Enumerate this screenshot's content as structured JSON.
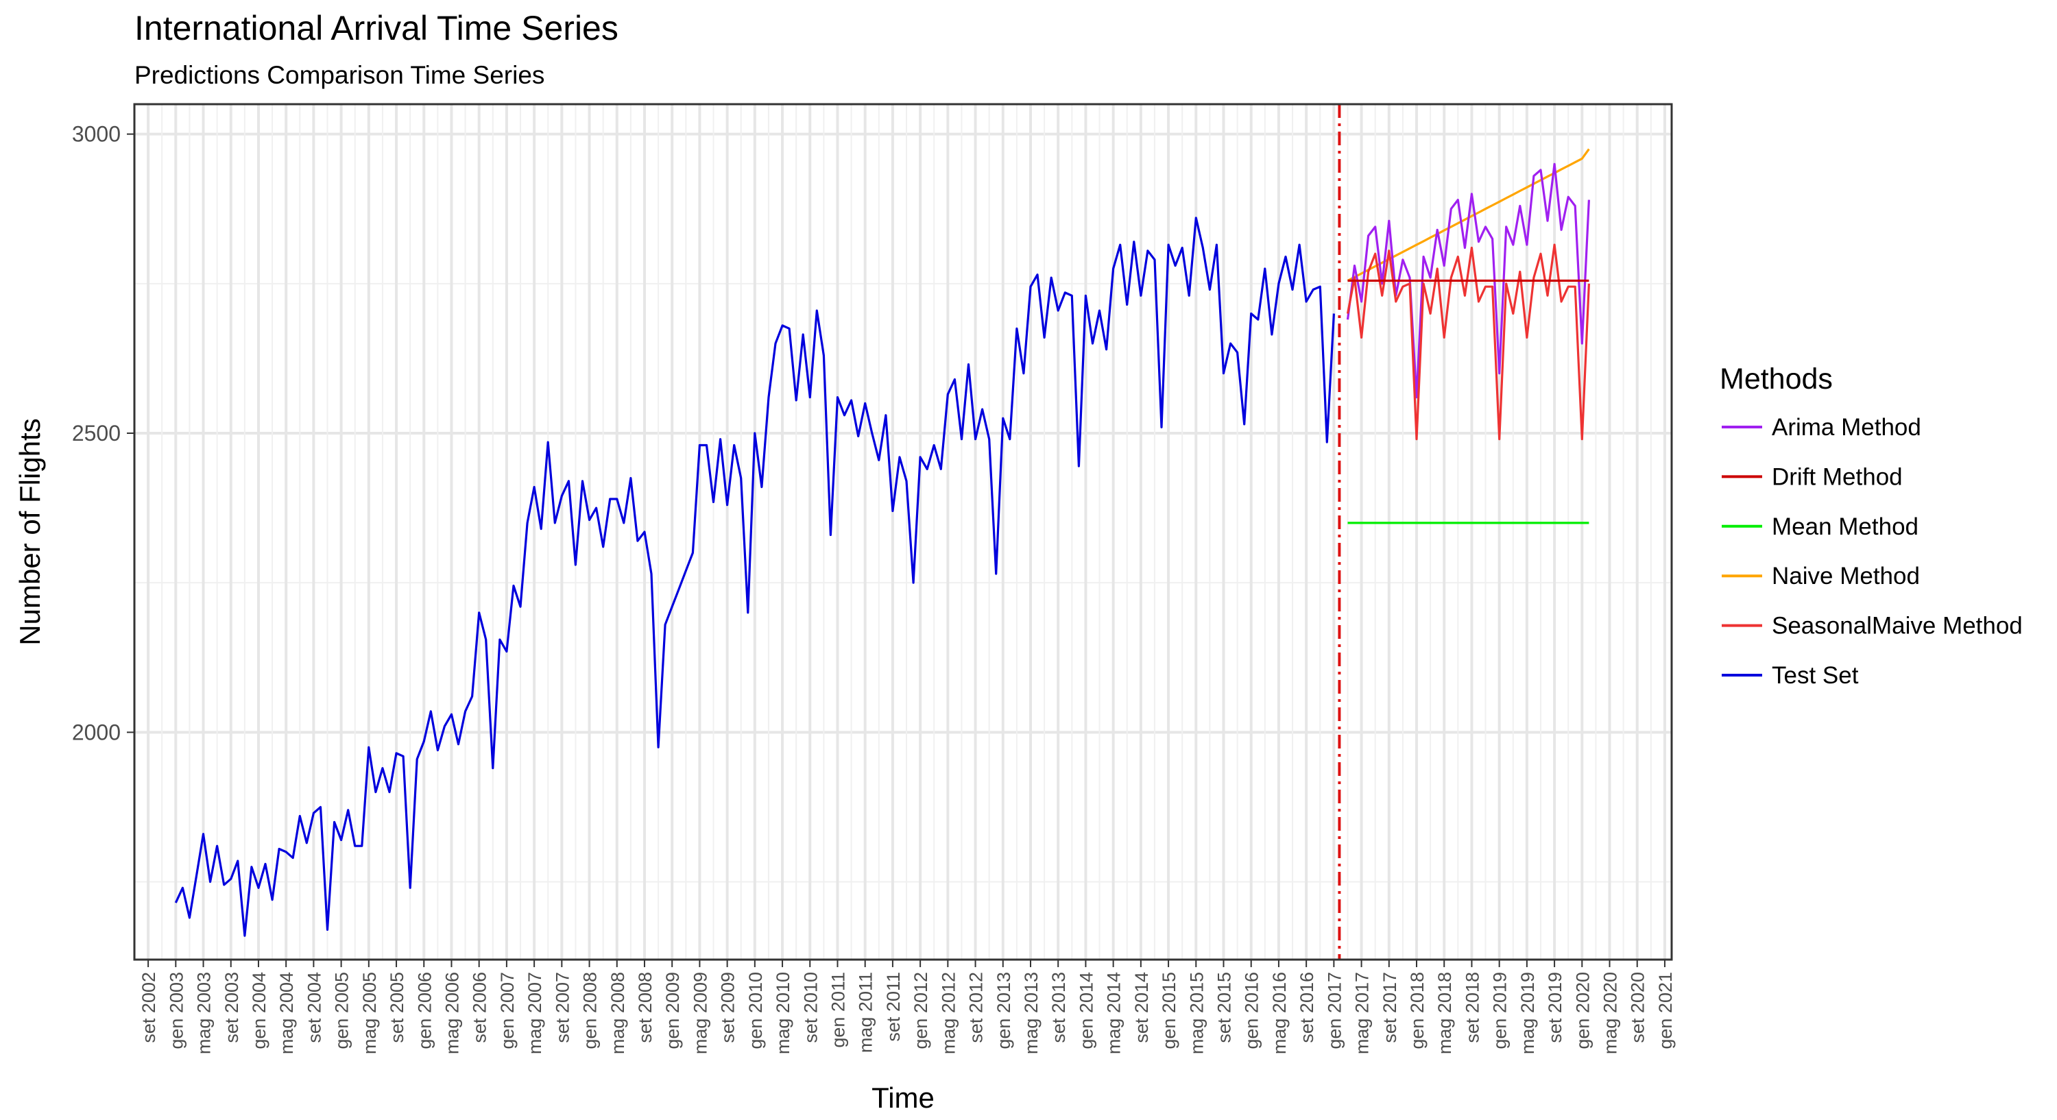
{
  "chart_data": {
    "type": "line",
    "title": "International Arrival Time Series",
    "subtitle": "Predictions Comparison Time Series",
    "xlabel": "Time",
    "ylabel": "Number of Flights",
    "ylim": [
      1620,
      3050
    ],
    "yticks": [
      2000,
      2500,
      3000
    ],
    "xlim": [
      "2002-07",
      "2021-02"
    ],
    "grid": true,
    "legend": {
      "title": "Methods",
      "placement": "right",
      "items": [
        {
          "name": "Arima Method",
          "color": "#A020F0"
        },
        {
          "name": "Drift Method",
          "color": "#CC0000"
        },
        {
          "name": "Mean Method",
          "color": "#00EE00"
        },
        {
          "name": "Naive Method",
          "color": "#FFA500"
        },
        {
          "name": "SeasonalMaive Method",
          "color": "#EE3333"
        },
        {
          "name": "Test Set",
          "color": "#0000DD"
        }
      ]
    },
    "x_tick_labels": [
      "set 2002",
      "gen 2003",
      "mag 2003",
      "set 2003",
      "gen 2004",
      "mag 2004",
      "set 2004",
      "gen 2005",
      "mag 2005",
      "set 2005",
      "gen 2006",
      "mag 2006",
      "set 2006",
      "gen 2007",
      "mag 2007",
      "set 2007",
      "gen 2008",
      "mag 2008",
      "set 2008",
      "gen 2009",
      "mag 2009",
      "set 2009",
      "gen 2010",
      "mag 2010",
      "set 2010",
      "gen 2011",
      "mag 2011",
      "set 2011",
      "gen 2012",
      "mag 2012",
      "set 2012",
      "gen 2013",
      "mag 2013",
      "set 2013",
      "gen 2014",
      "mag 2014",
      "set 2014",
      "gen 2015",
      "mag 2015",
      "set 2015",
      "gen 2016",
      "mag 2016",
      "set 2016",
      "gen 2017",
      "mag 2017",
      "set 2017",
      "gen 2018",
      "mag 2018",
      "set 2018",
      "gen 2019",
      "mag 2019",
      "set 2019",
      "gen 2020",
      "mag 2020",
      "set 2020",
      "gen 2021"
    ],
    "forecast_start": "2017-03",
    "test_set": {
      "start": "2003-01",
      "values": [
        1715,
        1740,
        1690,
        1760,
        1830,
        1750,
        1810,
        1745,
        1755,
        1785,
        1660,
        1775,
        1740,
        1780,
        1720,
        1805,
        1800,
        1790,
        1860,
        1815,
        1865,
        1875,
        1670,
        1850,
        1820,
        1870,
        1810,
        1810,
        1975,
        1900,
        1940,
        1900,
        1965,
        1960,
        1740,
        1955,
        1985,
        2035,
        1970,
        2010,
        2030,
        1980,
        2035,
        2060,
        2200,
        2155,
        1940,
        2155,
        2135,
        2245,
        2210,
        2350,
        2410,
        2340,
        2485,
        2350,
        2395,
        2420,
        2280,
        2420,
        2355,
        2375,
        2310,
        2390,
        2390,
        2350,
        2425,
        2320,
        2335,
        2265,
        1975,
        2180,
        2210,
        2240,
        2270,
        2300,
        2480,
        2480,
        2385,
        2490,
        2380,
        2480,
        2425,
        2200,
        2500,
        2410,
        2560,
        2650,
        2680,
        2675,
        2555,
        2665,
        2560,
        2705,
        2630,
        2330,
        2560,
        2530,
        2555,
        2495,
        2550,
        2500,
        2455,
        2530,
        2370,
        2460,
        2420,
        2250,
        2460,
        2440,
        2480,
        2440,
        2565,
        2590,
        2490,
        2615,
        2490,
        2540,
        2490,
        2265,
        2525,
        2490,
        2675,
        2600,
        2745,
        2765,
        2660,
        2760,
        2705,
        2735,
        2730,
        2445,
        2730,
        2650,
        2705,
        2640,
        2775,
        2815,
        2715,
        2820,
        2730,
        2805,
        2790,
        2510,
        2815,
        2780,
        2810,
        2730,
        2860,
        2810,
        2740,
        2815,
        2600,
        2650,
        2635,
        2515,
        2700,
        2690,
        2775,
        2665,
        2750,
        2795,
        2740,
        2815,
        2720,
        2740,
        2745,
        2485,
        2700
      ]
    },
    "forecasts": {
      "start": "2017-03",
      "arima": [
        2690,
        2780,
        2720,
        2830,
        2845,
        2750,
        2855,
        2730,
        2790,
        2760,
        2560,
        2795,
        2760,
        2840,
        2780,
        2875,
        2890,
        2810,
        2900,
        2820,
        2845,
        2825,
        2600,
        2845,
        2815,
        2880,
        2815,
        2930,
        2940,
        2855,
        2950,
        2840,
        2895,
        2880,
        2650,
        2890
      ],
      "seasonal_naive": [
        2700,
        2760,
        2660,
        2770,
        2800,
        2730,
        2805,
        2720,
        2745,
        2750,
        2490,
        2750,
        2700,
        2775,
        2660,
        2760,
        2795,
        2730,
        2810,
        2720,
        2745,
        2745,
        2490,
        2750,
        2700,
        2770,
        2660,
        2760,
        2800,
        2730,
        2815,
        2720,
        2745,
        2745,
        2490,
        2750
      ],
      "drift": [
        2755,
        2755,
        2755,
        2755,
        2755,
        2755,
        2755,
        2755,
        2755,
        2755,
        2755,
        2755,
        2755,
        2755,
        2755,
        2755,
        2755,
        2755,
        2755,
        2755,
        2755,
        2755,
        2755,
        2755,
        2755,
        2755,
        2755,
        2755,
        2755,
        2755,
        2755,
        2755,
        2755,
        2755,
        2755,
        2755
      ],
      "mean": [
        2350,
        2350,
        2350,
        2350,
        2350,
        2350,
        2350,
        2350,
        2350,
        2350,
        2350,
        2350,
        2350,
        2350,
        2350,
        2350,
        2350,
        2350,
        2350,
        2350,
        2350,
        2350,
        2350,
        2350,
        2350,
        2350,
        2350,
        2350,
        2350,
        2350,
        2350,
        2350,
        2350,
        2350,
        2350,
        2350
      ],
      "naive": [
        2755,
        2761,
        2767,
        2773,
        2779,
        2785,
        2791,
        2797,
        2803,
        2809,
        2815,
        2821,
        2827,
        2833,
        2839,
        2845,
        2851,
        2857,
        2863,
        2869,
        2875,
        2881,
        2887,
        2893,
        2899,
        2905,
        2911,
        2917,
        2923,
        2929,
        2935,
        2941,
        2947,
        2953,
        2959,
        2975
      ]
    }
  }
}
